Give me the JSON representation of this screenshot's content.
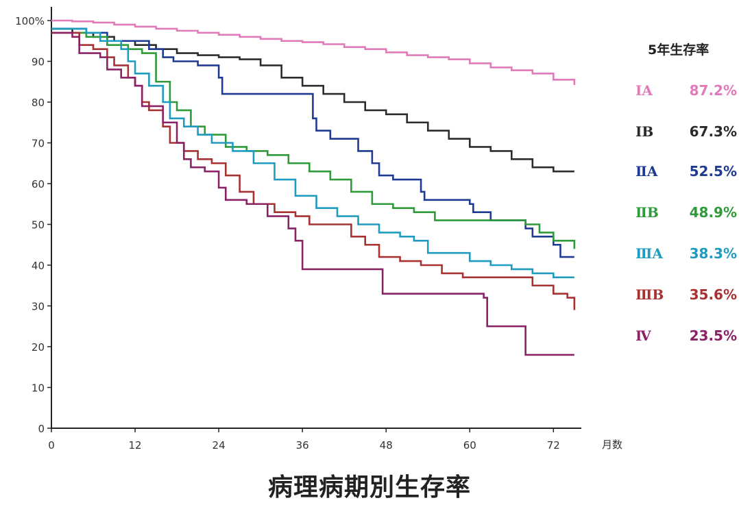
{
  "title": "病理病期別生存率",
  "chart_data": {
    "type": "line",
    "title": "病理病期別生存率",
    "xlabel": "月数",
    "ylabel": "",
    "xlim": [
      0,
      76
    ],
    "ylim": [
      0,
      100
    ],
    "x_ticks": [
      0,
      12,
      24,
      36,
      48,
      60,
      72
    ],
    "y_ticks": [
      0,
      10,
      20,
      30,
      40,
      50,
      60,
      70,
      80,
      90,
      100
    ],
    "y_tick_labels": [
      "0",
      "10",
      "20",
      "30",
      "40",
      "50",
      "60",
      "70",
      "80",
      "90",
      "100%"
    ],
    "x_tick_labels": [
      "0",
      "12",
      "24",
      "36",
      "48",
      "60",
      "72"
    ],
    "grid": false,
    "legend_title": "5年生存率",
    "legend_position": "right",
    "series": [
      {
        "name": "ⅠA",
        "rate": "87.2%",
        "color": "#e07ab8",
        "points": [
          [
            0,
            100
          ],
          [
            3,
            99.8
          ],
          [
            6,
            99.5
          ],
          [
            9,
            99
          ],
          [
            12,
            98.5
          ],
          [
            15,
            98
          ],
          [
            18,
            97.5
          ],
          [
            21,
            97
          ],
          [
            24,
            96.5
          ],
          [
            27,
            96
          ],
          [
            30,
            95.5
          ],
          [
            33,
            95
          ],
          [
            36,
            94.7
          ],
          [
            39,
            94.2
          ],
          [
            42,
            93.5
          ],
          [
            45,
            93
          ],
          [
            48,
            92.2
          ],
          [
            51,
            91.5
          ],
          [
            54,
            91
          ],
          [
            57,
            90.5
          ],
          [
            60,
            89.5
          ],
          [
            63,
            88.5
          ],
          [
            66,
            87.8
          ],
          [
            69,
            87
          ],
          [
            72,
            85.5
          ],
          [
            75,
            84.2
          ]
        ]
      },
      {
        "name": "ⅠB",
        "rate": "67.3%",
        "color": "#2b2b2b",
        "points": [
          [
            0,
            98
          ],
          [
            3,
            97
          ],
          [
            6,
            96
          ],
          [
            9,
            95
          ],
          [
            12,
            94
          ],
          [
            15,
            93
          ],
          [
            18,
            92
          ],
          [
            21,
            91.5
          ],
          [
            24,
            91
          ],
          [
            27,
            90.5
          ],
          [
            30,
            89
          ],
          [
            33,
            86
          ],
          [
            36,
            84
          ],
          [
            39,
            82
          ],
          [
            42,
            80
          ],
          [
            45,
            78
          ],
          [
            48,
            77
          ],
          [
            51,
            75
          ],
          [
            54,
            73
          ],
          [
            57,
            71
          ],
          [
            60,
            69
          ],
          [
            63,
            68
          ],
          [
            66,
            66
          ],
          [
            69,
            64
          ],
          [
            72,
            63
          ],
          [
            75,
            63
          ]
        ]
      },
      {
        "name": "ⅡA",
        "rate": "52.5%",
        "color": "#1f3a93",
        "points": [
          [
            0,
            98
          ],
          [
            5,
            97
          ],
          [
            8,
            95
          ],
          [
            14,
            93
          ],
          [
            16,
            91
          ],
          [
            17.5,
            90
          ],
          [
            21,
            89
          ],
          [
            24,
            86
          ],
          [
            24.5,
            82
          ],
          [
            30,
            82
          ],
          [
            37,
            82
          ],
          [
            37.5,
            76
          ],
          [
            38,
            73
          ],
          [
            40,
            71
          ],
          [
            44,
            68
          ],
          [
            46,
            65
          ],
          [
            47,
            62
          ],
          [
            49,
            61
          ],
          [
            53,
            58
          ],
          [
            53.5,
            56
          ],
          [
            60,
            55
          ],
          [
            60.5,
            53
          ],
          [
            63,
            51
          ],
          [
            68,
            49
          ],
          [
            69,
            47
          ],
          [
            72,
            45
          ],
          [
            73,
            42
          ],
          [
            75,
            42
          ]
        ]
      },
      {
        "name": "ⅡB",
        "rate": "48.9%",
        "color": "#2e9a3a",
        "points": [
          [
            0,
            97
          ],
          [
            5,
            96
          ],
          [
            8,
            94
          ],
          [
            11,
            93
          ],
          [
            13,
            92
          ],
          [
            15,
            85
          ],
          [
            17,
            80
          ],
          [
            18,
            78
          ],
          [
            20,
            74
          ],
          [
            22,
            72
          ],
          [
            25,
            69
          ],
          [
            28,
            68
          ],
          [
            31,
            67
          ],
          [
            34,
            65
          ],
          [
            37,
            63
          ],
          [
            40,
            61
          ],
          [
            43,
            58
          ],
          [
            46,
            55
          ],
          [
            49,
            54
          ],
          [
            52,
            53
          ],
          [
            55,
            51
          ],
          [
            58,
            51
          ],
          [
            61,
            51
          ],
          [
            64,
            51
          ],
          [
            68,
            50
          ],
          [
            70,
            48
          ],
          [
            72,
            46
          ],
          [
            75,
            44
          ]
        ]
      },
      {
        "name": "ⅢA",
        "rate": "38.3%",
        "color": "#1f9bbf",
        "points": [
          [
            0,
            98
          ],
          [
            5,
            97
          ],
          [
            7,
            95
          ],
          [
            10,
            93
          ],
          [
            11,
            90
          ],
          [
            12,
            87
          ],
          [
            14,
            84
          ],
          [
            16,
            80
          ],
          [
            17,
            76
          ],
          [
            19,
            74
          ],
          [
            21,
            72
          ],
          [
            23,
            70
          ],
          [
            26,
            68
          ],
          [
            29,
            65
          ],
          [
            32,
            61
          ],
          [
            35,
            57
          ],
          [
            38,
            54
          ],
          [
            41,
            52
          ],
          [
            44,
            50
          ],
          [
            47,
            48
          ],
          [
            50,
            47
          ],
          [
            52,
            46
          ],
          [
            54,
            43
          ],
          [
            57,
            43
          ],
          [
            60,
            41
          ],
          [
            63,
            40
          ],
          [
            66,
            39
          ],
          [
            69,
            38
          ],
          [
            72,
            37
          ],
          [
            75,
            37
          ]
        ]
      },
      {
        "name": "ⅢB",
        "rate": "35.6%",
        "color": "#a83232",
        "points": [
          [
            0,
            97
          ],
          [
            4,
            94
          ],
          [
            6,
            93
          ],
          [
            8,
            91
          ],
          [
            9,
            89
          ],
          [
            11,
            86
          ],
          [
            12,
            84
          ],
          [
            13,
            80
          ],
          [
            14,
            78
          ],
          [
            16,
            74
          ],
          [
            17,
            70
          ],
          [
            19,
            68
          ],
          [
            21,
            66
          ],
          [
            23,
            65
          ],
          [
            25,
            62
          ],
          [
            27,
            58
          ],
          [
            29,
            55
          ],
          [
            32,
            53
          ],
          [
            35,
            52
          ],
          [
            37,
            50
          ],
          [
            40,
            50
          ],
          [
            43,
            47
          ],
          [
            45,
            45
          ],
          [
            47,
            42
          ],
          [
            50,
            41
          ],
          [
            53,
            40
          ],
          [
            56,
            38
          ],
          [
            59,
            37
          ],
          [
            62,
            37
          ],
          [
            65,
            37
          ],
          [
            69,
            35
          ],
          [
            72,
            33
          ],
          [
            74,
            32
          ],
          [
            75,
            29
          ]
        ]
      },
      {
        "name": "Ⅳ",
        "rate": "23.5%",
        "color": "#8a2266",
        "points": [
          [
            0,
            97
          ],
          [
            3,
            96
          ],
          [
            4,
            92
          ],
          [
            7,
            91
          ],
          [
            8,
            88
          ],
          [
            10,
            86
          ],
          [
            12,
            84
          ],
          [
            13,
            79
          ],
          [
            16,
            75
          ],
          [
            18,
            70
          ],
          [
            19,
            66
          ],
          [
            20,
            64
          ],
          [
            22,
            63
          ],
          [
            24,
            59
          ],
          [
            25,
            56
          ],
          [
            28,
            55
          ],
          [
            31,
            52
          ],
          [
            34,
            49
          ],
          [
            35,
            46
          ],
          [
            36,
            39
          ],
          [
            38,
            39
          ],
          [
            43,
            39
          ],
          [
            47,
            39
          ],
          [
            47.5,
            33
          ],
          [
            55,
            33
          ],
          [
            62,
            32
          ],
          [
            62.5,
            25
          ],
          [
            66,
            25
          ],
          [
            68,
            18
          ],
          [
            72,
            18
          ],
          [
            75,
            18
          ]
        ]
      }
    ]
  }
}
